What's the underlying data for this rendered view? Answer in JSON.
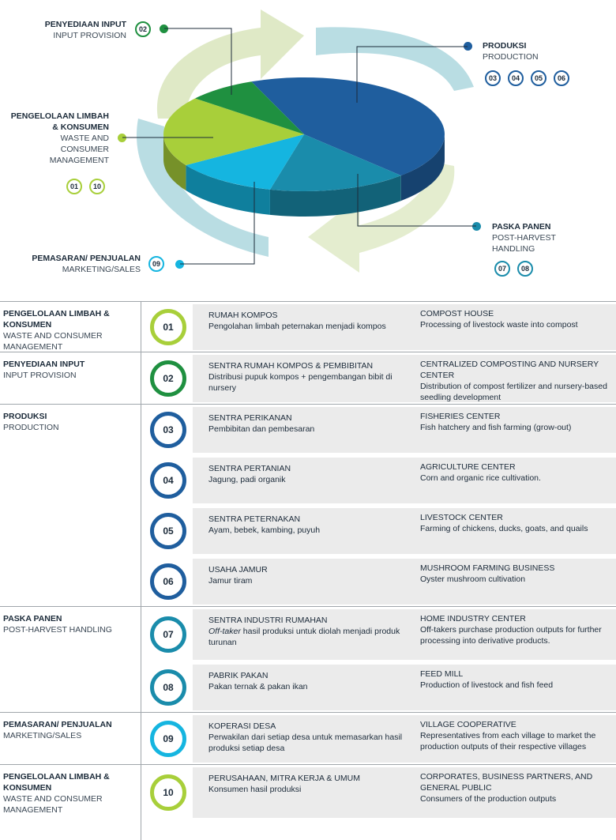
{
  "diagram": {
    "labels": {
      "input": {
        "id": "PENYEDIAAN INPUT",
        "en": "INPUT PROVISION",
        "badges": [
          "02"
        ]
      },
      "waste": {
        "id_line1": "PENGELOLAAN LIMBAH",
        "id_line2": "& KONSUMEN",
        "en_line1": "WASTE AND",
        "en_line2": "CONSUMER",
        "en_line3": "MANAGEMENT",
        "badges": [
          "01",
          "10"
        ]
      },
      "marketing": {
        "id": "PEMASARAN/ PENJUALAN",
        "en": "MARKETING/SALES",
        "badges": [
          "09"
        ]
      },
      "production": {
        "id": "PRODUKSI",
        "en": "PRODUCTION",
        "badges": [
          "03",
          "04",
          "05",
          "06"
        ]
      },
      "postharvest": {
        "id": "PASKA PANEN",
        "en_line1": "POST-HARVEST",
        "en_line2": "HANDLING",
        "badges": [
          "07",
          "08"
        ]
      }
    },
    "colors": {
      "production": "#1f5e9e",
      "postharvest": "#1a8cab",
      "marketing": "#15b5e0",
      "waste": "#a8cf3a",
      "input": "#1f9040",
      "arrow": "#b9dde3",
      "arrow_light": "#e4edcf"
    },
    "pie_shares": {
      "production": 0.44,
      "postharvest": 0.16,
      "marketing": 0.12,
      "waste": 0.2,
      "input": 0.08
    }
  },
  "table": {
    "groups": [
      {
        "id_label": "PENGELOLAAN LIMBAH & KONSUMEN",
        "en_label": "WASTE AND CONSUMER MANAGEMENT",
        "rows": [
          {
            "num": "01",
            "color": "#a8cf3a",
            "id_title": "RUMAH KOMPOS",
            "id_desc": "Pengolahan limbah peternakan menjadi kompos",
            "en_title": "COMPOST HOUSE",
            "en_desc": "Processing of livestock waste into compost"
          }
        ]
      },
      {
        "id_label": "PENYEDIAAN INPUT",
        "en_label": "INPUT PROVISION",
        "rows": [
          {
            "num": "02",
            "color": "#1f9040",
            "id_title": "SENTRA RUMAH KOMPOS & PEMBIBITAN",
            "id_desc": "Distribusi pupuk kompos + pengembangan bibit di nursery",
            "en_title": "CENTRALIZED COMPOSTING AND NURSERY CENTER",
            "en_desc": "Distribution of compost fertilizer and nursery-based seedling development"
          }
        ]
      },
      {
        "id_label": "PRODUKSI",
        "en_label": "PRODUCTION",
        "rows": [
          {
            "num": "03",
            "color": "#1f5e9e",
            "id_title": "SENTRA PERIKANAN",
            "id_desc": "Pembibitan dan pembesaran",
            "en_title": "FISHERIES CENTER",
            "en_desc": "Fish hatchery and fish farming (grow-out)"
          },
          {
            "num": "04",
            "color": "#1f5e9e",
            "id_title": "SENTRA PERTANIAN",
            "id_desc": "Jagung, padi organik",
            "en_title": "AGRICULTURE CENTER",
            "en_desc": "Corn and organic rice cultivation."
          },
          {
            "num": "05",
            "color": "#1f5e9e",
            "id_title": "SENTRA PETERNAKAN",
            "id_desc": "Ayam, bebek, kambing, puyuh",
            "en_title": "LIVESTOCK CENTER",
            "en_desc": "Farming of chickens, ducks, goats, and quails"
          },
          {
            "num": "06",
            "color": "#1f5e9e",
            "id_title": "USAHA JAMUR",
            "id_desc": "Jamur tiram",
            "en_title": "MUSHROOM FARMING BUSINESS",
            "en_desc": "Oyster mushroom cultivation"
          }
        ]
      },
      {
        "id_label": "PASKA PANEN",
        "en_label": "POST-HARVEST HANDLING",
        "rows": [
          {
            "num": "07",
            "color": "#1a8cab",
            "id_title": "SENTRA INDUSTRI RUMAHAN",
            "id_desc_em": "Off-taker",
            "id_desc": " hasil produksi untuk diolah menjadi produk turunan",
            "en_title": "HOME INDUSTRY CENTER",
            "en_desc": "Off-takers purchase production outputs for further processing into derivative products."
          },
          {
            "num": "08",
            "color": "#1a8cab",
            "id_title": "PABRIK PAKAN",
            "id_desc": "Pakan ternak & pakan ikan",
            "en_title": "FEED MILL",
            "en_desc": "Production of livestock and fish feed"
          }
        ]
      },
      {
        "id_label": "PEMASARAN/ PENJUALAN",
        "en_label": "MARKETING/SALES",
        "rows": [
          {
            "num": "09",
            "color": "#15b5e0",
            "id_title": "KOPERASI DESA",
            "id_desc": "Perwakilan dari setiap desa untuk memasarkan hasil produksi setiap desa",
            "en_title": "VILLAGE COOPERATIVE",
            "en_desc": "Representatives from each village to market the production outputs of their respective villages"
          }
        ]
      },
      {
        "id_label": "PENGELOLAAN LIMBAH & KONSUMEN",
        "en_label": "WASTE AND CONSUMER MANAGEMENT",
        "rows": [
          {
            "num": "10",
            "color": "#a8cf3a",
            "id_title": "PERUSAHAAN, MITRA KERJA & UMUM",
            "id_desc": "Konsumen hasil produksi",
            "en_title": "CORPORATES, BUSINESS PARTNERS, AND GENERAL PUBLIC",
            "en_desc": "Consumers of the production outputs"
          }
        ]
      }
    ]
  }
}
